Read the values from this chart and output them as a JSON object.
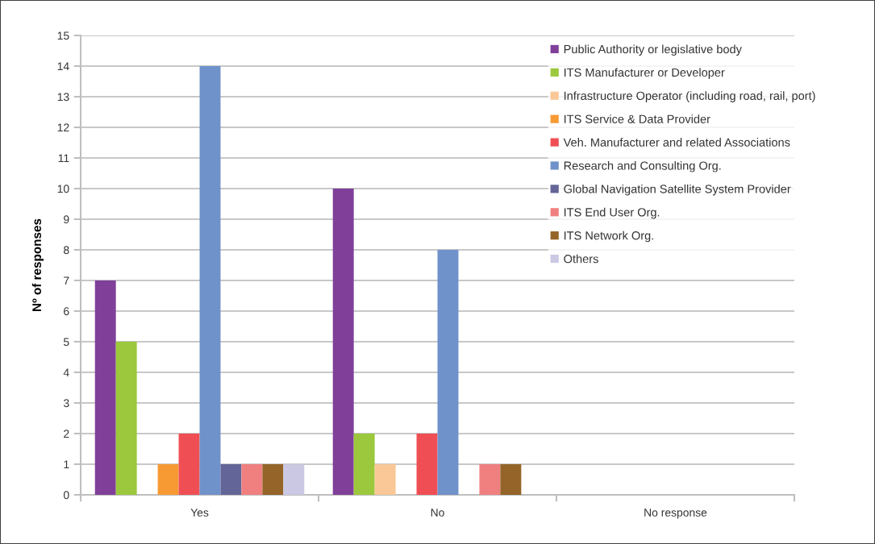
{
  "chart_data": {
    "type": "bar",
    "ylabel": "Nº of responses",
    "categories": [
      "Yes",
      "No",
      "No response"
    ],
    "series": [
      {
        "name": "Public Authority or legislative body",
        "color": "#80409a",
        "values": [
          7,
          10,
          0
        ]
      },
      {
        "name": "ITS Manufacturer or Developer",
        "color": "#9bc83c",
        "values": [
          5,
          2,
          0
        ]
      },
      {
        "name": "Infrastructure Operator (including road, rail, port)",
        "color": "#fac896",
        "values": [
          0,
          1,
          0
        ]
      },
      {
        "name": "ITS Service & Data Provider",
        "color": "#f79a34",
        "values": [
          1,
          0,
          0
        ]
      },
      {
        "name": "Veh. Manufacturer and related Associations",
        "color": "#ef4f54",
        "values": [
          2,
          2,
          0
        ]
      },
      {
        "name": "Research and Consulting Org.",
        "color": "#7092cb",
        "values": [
          14,
          8,
          0
        ]
      },
      {
        "name": "Global Navigation Satellite System Provider",
        "color": "#636598",
        "values": [
          1,
          0,
          0
        ]
      },
      {
        "name": "ITS End User Org.",
        "color": "#f08080",
        "values": [
          1,
          1,
          0
        ]
      },
      {
        "name": "ITS Network Org.",
        "color": "#946428",
        "values": [
          1,
          1,
          0
        ]
      },
      {
        "name": "Others",
        "color": "#cbc8e3",
        "values": [
          1,
          0,
          0
        ]
      }
    ],
    "ylim": [
      0,
      15
    ],
    "yticks": [
      0,
      1,
      2,
      3,
      4,
      5,
      6,
      7,
      8,
      9,
      10,
      11,
      12,
      13,
      14,
      15
    ],
    "grid": "y",
    "legend": "top right"
  }
}
